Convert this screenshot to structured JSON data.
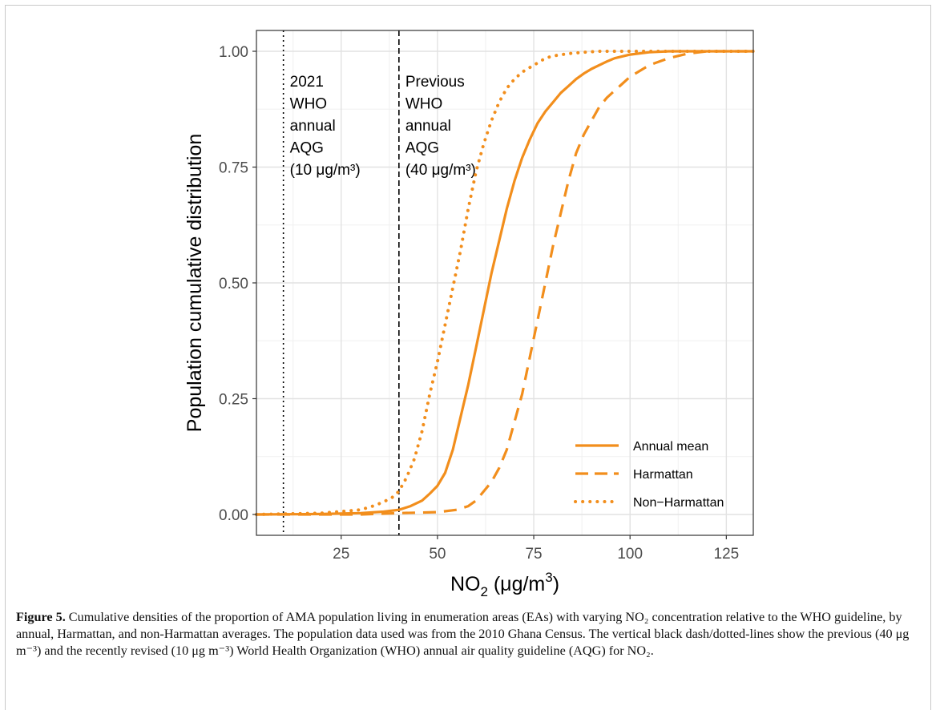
{
  "chart_data": {
    "type": "line",
    "xlabel_prefix": "NO",
    "xlabel_sub": "2",
    "xlabel_suffix": " (μg/m",
    "xlabel_sup": "3",
    "xlabel_close": ")",
    "ylabel": "Population cumulative distribution",
    "xlim": [
      3,
      132
    ],
    "ylim": [
      -0.045,
      1.045
    ],
    "x_ticks": [
      25,
      50,
      75,
      100,
      125
    ],
    "y_ticks": [
      0.0,
      0.25,
      0.5,
      0.75,
      1.0
    ],
    "y_tick_labels": [
      "0.00",
      "0.25",
      "0.50",
      "0.75",
      "1.00"
    ],
    "grid": true,
    "legend_position": "bottom-right",
    "series": [
      {
        "name": "Annual mean",
        "style": "solid",
        "color": "#f28e1c",
        "x": [
          3,
          20,
          30,
          36,
          40,
          43,
          46,
          48,
          50,
          52,
          54,
          56,
          58,
          60,
          62,
          64,
          66,
          68,
          70,
          72,
          74,
          76,
          78,
          80,
          82,
          84,
          86,
          88,
          90,
          92,
          94,
          96,
          100,
          105,
          110,
          115,
          120,
          132
        ],
        "y": [
          0.0,
          0.001,
          0.003,
          0.006,
          0.01,
          0.018,
          0.03,
          0.045,
          0.062,
          0.09,
          0.14,
          0.21,
          0.28,
          0.36,
          0.44,
          0.52,
          0.59,
          0.66,
          0.72,
          0.77,
          0.81,
          0.845,
          0.87,
          0.89,
          0.91,
          0.925,
          0.94,
          0.952,
          0.962,
          0.97,
          0.978,
          0.985,
          0.993,
          0.998,
          1.0,
          1.0,
          1.0,
          1.0
        ]
      },
      {
        "name": "Harmattan",
        "style": "dashed",
        "color": "#f28e1c",
        "x": [
          3,
          30,
          40,
          50,
          55,
          58,
          60,
          62,
          64,
          66,
          68,
          70,
          72,
          74,
          76,
          78,
          80,
          82,
          84,
          86,
          88,
          90,
          92,
          94,
          96,
          98,
          100,
          105,
          110,
          115,
          120,
          132
        ],
        "y": [
          0.0,
          0.0,
          0.003,
          0.005,
          0.01,
          0.018,
          0.03,
          0.05,
          0.07,
          0.1,
          0.14,
          0.2,
          0.26,
          0.34,
          0.42,
          0.5,
          0.58,
          0.65,
          0.72,
          0.78,
          0.82,
          0.85,
          0.88,
          0.9,
          0.915,
          0.93,
          0.945,
          0.97,
          0.985,
          0.995,
          1.0,
          1.0
        ]
      },
      {
        "name": "Non−Harmattan",
        "style": "dotted",
        "color": "#f28e1c",
        "x": [
          3,
          20,
          30,
          34,
          38,
          40,
          42,
          44,
          46,
          48,
          50,
          52,
          54,
          56,
          58,
          60,
          62,
          64,
          66,
          68,
          70,
          72,
          74,
          76,
          78,
          80,
          84,
          88,
          92,
          96,
          100,
          132
        ],
        "y": [
          0.0,
          0.003,
          0.01,
          0.02,
          0.035,
          0.05,
          0.08,
          0.12,
          0.18,
          0.26,
          0.33,
          0.41,
          0.49,
          0.57,
          0.66,
          0.74,
          0.8,
          0.85,
          0.89,
          0.92,
          0.94,
          0.955,
          0.965,
          0.975,
          0.985,
          0.99,
          0.995,
          0.998,
          1.0,
          1.0,
          1.0,
          1.0
        ]
      }
    ],
    "reference_lines": [
      {
        "x": 10,
        "style": "dotted",
        "color": "#000000",
        "label_lines": [
          "2021",
          "WHO",
          "annual",
          "AQG",
          "(10 μg/m³)"
        ]
      },
      {
        "x": 40,
        "style": "dashed",
        "color": "#000000",
        "label_lines": [
          "Previous",
          "WHO",
          "annual",
          "AQG",
          "(40 μg/m³)"
        ]
      }
    ]
  },
  "caption": {
    "label": "Figure 5.",
    "text": " Cumulative densities of the proportion of AMA population living in enumeration areas (EAs) with varying NO₂ concentration relative to the WHO guideline, by annual, Harmattan, and non-Harmattan averages. The population data used was from the 2010 Ghana Census. The vertical black dash/dotted-lines show the previous (40 μg m⁻³) and the recently revised (10 μg m⁻³) World Health Organization (WHO) annual air quality guideline (AQG) for NO₂."
  }
}
